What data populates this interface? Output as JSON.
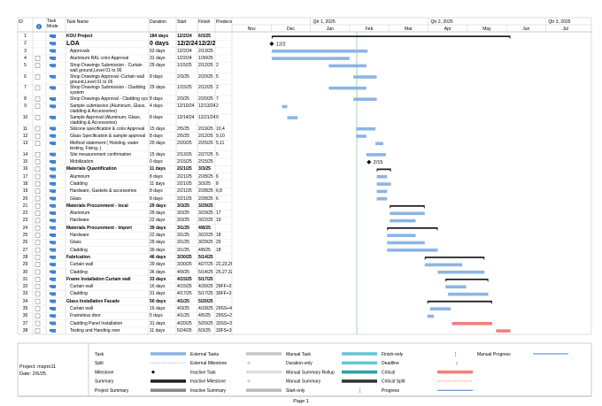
{
  "header": {
    "id": "ID",
    "mode": "Task Mode",
    "name": "Task Name",
    "duration": "Duration",
    "start": "Start",
    "finish": "Finish",
    "predecessors": "Predeces"
  },
  "timescale": {
    "quarters": [
      "Qtr 1, 2025",
      "Qtr 2, 2025",
      "Qtr 3, 2025"
    ],
    "months": [
      "Nov",
      "Dec",
      "Jan",
      "Feb",
      "Mar",
      "Apr",
      "May",
      "Jun",
      "Jul"
    ]
  },
  "tasks": [
    {
      "id": 1,
      "name": "KOU Project",
      "duration": "184 days",
      "start": "12/2/24",
      "finish": "6/3/25",
      "pred": "",
      "summary": true
    },
    {
      "id": 2,
      "name": "LOA",
      "duration": "0 days",
      "start": "12/2/24",
      "finish": "12/2/24",
      "pred": "",
      "summary": true,
      "milestone_label": "12/2"
    },
    {
      "id": 3,
      "name": "Approvals",
      "duration": "53 days",
      "start": "12/2/24",
      "finish": "2/13/25",
      "pred": ""
    },
    {
      "id": 4,
      "name": "Aluminum RAL color Approval",
      "duration": "31 days",
      "start": "12/2/24",
      "finish": "1/30/25",
      "pred": ""
    },
    {
      "id": 5,
      "name": "Shop Drawings Submission - Curtain wall ground,Level 01 to 06",
      "duration": "29 days",
      "start": "1/15/25",
      "finish": "2/12/25",
      "pred": "2"
    },
    {
      "id": 6,
      "name": "Shop Drawings Approval -Curtain wall ground,Level 01 to 06",
      "duration": "8 days",
      "start": "2/3/25",
      "finish": "2/20/25",
      "pred": "5"
    },
    {
      "id": 7,
      "name": "Shop Drawings Submission - Cladding system",
      "duration": "29 days",
      "start": "1/15/25",
      "finish": "2/12/25",
      "pred": "2"
    },
    {
      "id": 8,
      "name": "Shop Drawings Approval - Cladding system",
      "duration": "8 days",
      "start": "2/3/25",
      "finish": "2/20/25",
      "pred": "7"
    },
    {
      "id": 9,
      "name": "Sample submission (Aluminum, Glass, cladding & Accessories)",
      "duration": "4 days",
      "start": "12/10/24",
      "finish": "12/13/24",
      "pred": "2"
    },
    {
      "id": 10,
      "name": "Sample Approval (Aluminum, Glass, cladding & Accessories)",
      "duration": "8 days",
      "start": "12/14/24",
      "finish": "12/21/24",
      "pred": "9"
    },
    {
      "id": 11,
      "name": "Silicone specification & color Approval",
      "duration": "15 days",
      "start": "2/5/25",
      "finish": "2/19/25",
      "pred": "10,4"
    },
    {
      "id": 12,
      "name": "Glass Specification & sample approval",
      "duration": "8 days",
      "start": "2/5/25",
      "finish": "2/12/25",
      "pred": "9,10"
    },
    {
      "id": 13,
      "name": "Method statement ( Hoisting, water testing, Fixing..)",
      "duration": "20 days",
      "start": "2/20/25",
      "finish": "2/25/25",
      "pred": "5,11"
    },
    {
      "id": 14,
      "name": "Site measurement confirmation",
      "duration": "15 days",
      "start": "2/13/25",
      "finish": "2/27/25",
      "pred": "5"
    },
    {
      "id": 15,
      "name": "Mobilization",
      "duration": "0 days",
      "start": "2/15/25",
      "finish": "2/15/25",
      "pred": "",
      "milestone_label": "2/15"
    },
    {
      "id": 16,
      "name": "Materials Quantification",
      "duration": "11 days",
      "start": "2/21/25",
      "finish": "3/3/25",
      "pred": "",
      "summary": true
    },
    {
      "id": 17,
      "name": "Aluminum",
      "duration": "8 days",
      "start": "2/21/25",
      "finish": "2/28/25",
      "pred": "6"
    },
    {
      "id": 18,
      "name": "Cladding",
      "duration": "11 days",
      "start": "2/21/25",
      "finish": "3/3/25",
      "pred": "8"
    },
    {
      "id": 19,
      "name": "Hardware, Gaskets & accessories",
      "duration": "8 days",
      "start": "2/21/25",
      "finish": "2/28/25",
      "pred": "6,8"
    },
    {
      "id": 20,
      "name": "Glass",
      "duration": "8 days",
      "start": "2/21/25",
      "finish": "2/28/25",
      "pred": "6"
    },
    {
      "id": 21,
      "name": "Materials Procurement - local",
      "duration": "29 days",
      "start": "3/3/25",
      "finish": "3/29/25",
      "pred": "",
      "summary": true
    },
    {
      "id": 22,
      "name": "Aluminum",
      "duration": "29 days",
      "start": "3/3/25",
      "finish": "3/29/25",
      "pred": "17"
    },
    {
      "id": 23,
      "name": "Hardware",
      "duration": "22 days",
      "start": "3/3/25",
      "finish": "3/22/25",
      "pred": "19"
    },
    {
      "id": 24,
      "name": "Materials Procurement - Import",
      "duration": "39 days",
      "start": "3/1/25",
      "finish": "4/8/25",
      "pred": "",
      "summary": true
    },
    {
      "id": 25,
      "name": "Hardware",
      "duration": "22 days",
      "start": "3/1/25",
      "finish": "3/22/25",
      "pred": "18"
    },
    {
      "id": 26,
      "name": "Glass",
      "duration": "29 days",
      "start": "3/1/25",
      "finish": "3/29/25",
      "pred": "20"
    },
    {
      "id": 27,
      "name": "Cladding",
      "duration": "39 days",
      "start": "3/1/25",
      "finish": "4/8/25",
      "pred": "18"
    },
    {
      "id": 28,
      "name": "Fabrication",
      "duration": "46 days",
      "start": "3/30/25",
      "finish": "5/14/25",
      "pred": "",
      "summary": true
    },
    {
      "id": 29,
      "name": "Curtain wall",
      "duration": "29 days",
      "start": "3/30/25",
      "finish": "4/27/25",
      "pred": "22,23,26"
    },
    {
      "id": 30,
      "name": "Cladding",
      "duration": "36 days",
      "start": "4/9/25",
      "finish": "5/14/25",
      "pred": "25,27,32"
    },
    {
      "id": 31,
      "name": "Frame Installation Curtain wall",
      "duration": "33 days",
      "start": "4/15/25",
      "finish": "5/17/25",
      "pred": "",
      "summary": true
    },
    {
      "id": 32,
      "name": "Curtain wall",
      "duration": "16 days",
      "start": "4/15/25",
      "finish": "4/30/25",
      "pred": "29FF+3 d"
    },
    {
      "id": 33,
      "name": "Cladding",
      "duration": "31 days",
      "start": "4/17/25",
      "finish": "5/17/25",
      "pred": "30FF+3 d"
    },
    {
      "id": 34,
      "name": "Glass Installation Facade",
      "duration": "50 days",
      "start": "4/1/25",
      "finish": "5/20/25",
      "pred": "",
      "summary": true
    },
    {
      "id": 35,
      "name": "Curtain wall",
      "duration": "16 days",
      "start": "4/3/25",
      "finish": "4/18/25",
      "pred": "29SS+4"
    },
    {
      "id": 36,
      "name": "Frameless door",
      "duration": "5 days",
      "start": "4/1/25",
      "finish": "4/5/25",
      "pred": "29SS+2"
    },
    {
      "id": 37,
      "name": "Cladding Panel Installation",
      "duration": "31 days",
      "start": "4/20/25",
      "finish": "5/20/25",
      "pred": "33SS+3",
      "critical": true
    },
    {
      "id": 38,
      "name": "Testing and Handing over",
      "duration": "11 days",
      "start": "5/24/25",
      "finish": "6/3/25",
      "pred": "33FS+3",
      "critical": true
    }
  ],
  "legend": [
    "Task",
    "Split",
    "Milestone",
    "Summary",
    "Project Summary",
    "External Tasks",
    "External Milestone",
    "Inactive Task",
    "Inactive Milestone",
    "Inactive Summary",
    "Manual Task",
    "Duration-only",
    "Manual Summary Rollup",
    "Manual Summary",
    "Start-only",
    "Finish-only",
    "Deadline",
    "Critical",
    "Critical Split",
    "Progress",
    "Manual Progress"
  ],
  "footer": {
    "project": "Project: mspro11",
    "date": "Date: 2/6/25",
    "page": "Page 1"
  }
}
